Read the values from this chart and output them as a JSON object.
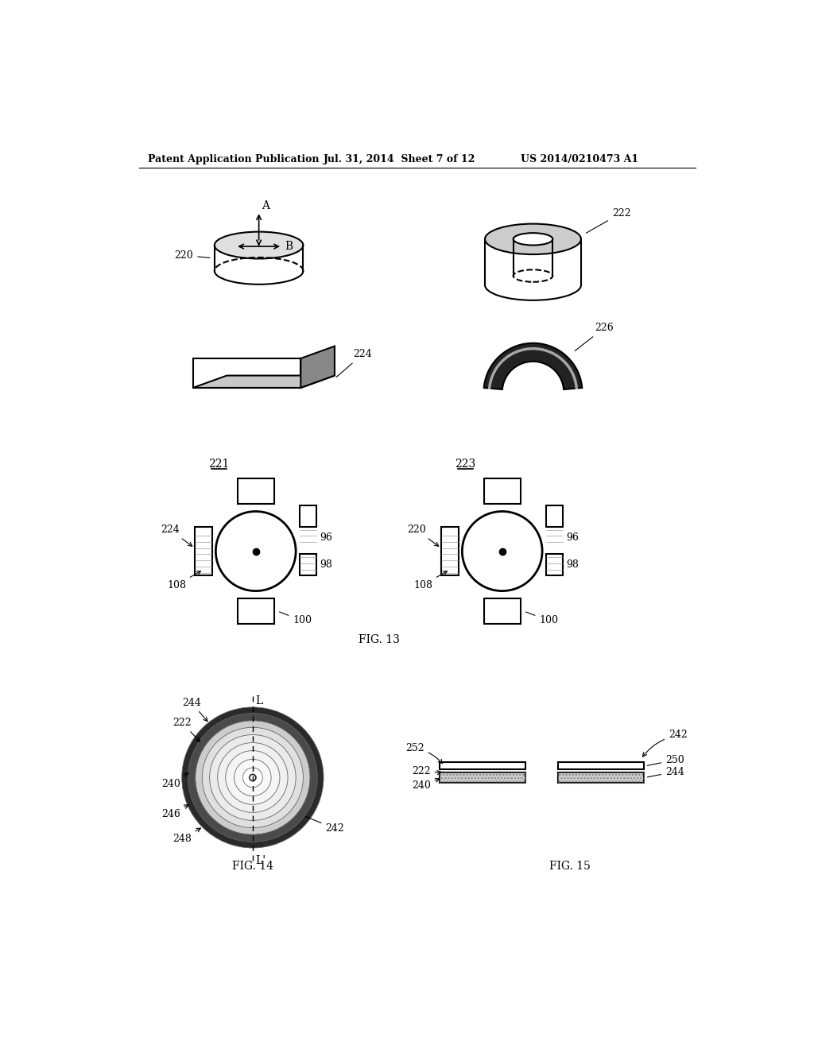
{
  "background_color": "#ffffff",
  "header_left": "Patent Application Publication",
  "header_mid": "Jul. 31, 2014  Sheet 7 of 12",
  "header_right": "US 2014/0210473 A1",
  "fig13_label": "FIG. 13",
  "fig14_label": "FIG. 14",
  "fig15_label": "FIG. 15"
}
